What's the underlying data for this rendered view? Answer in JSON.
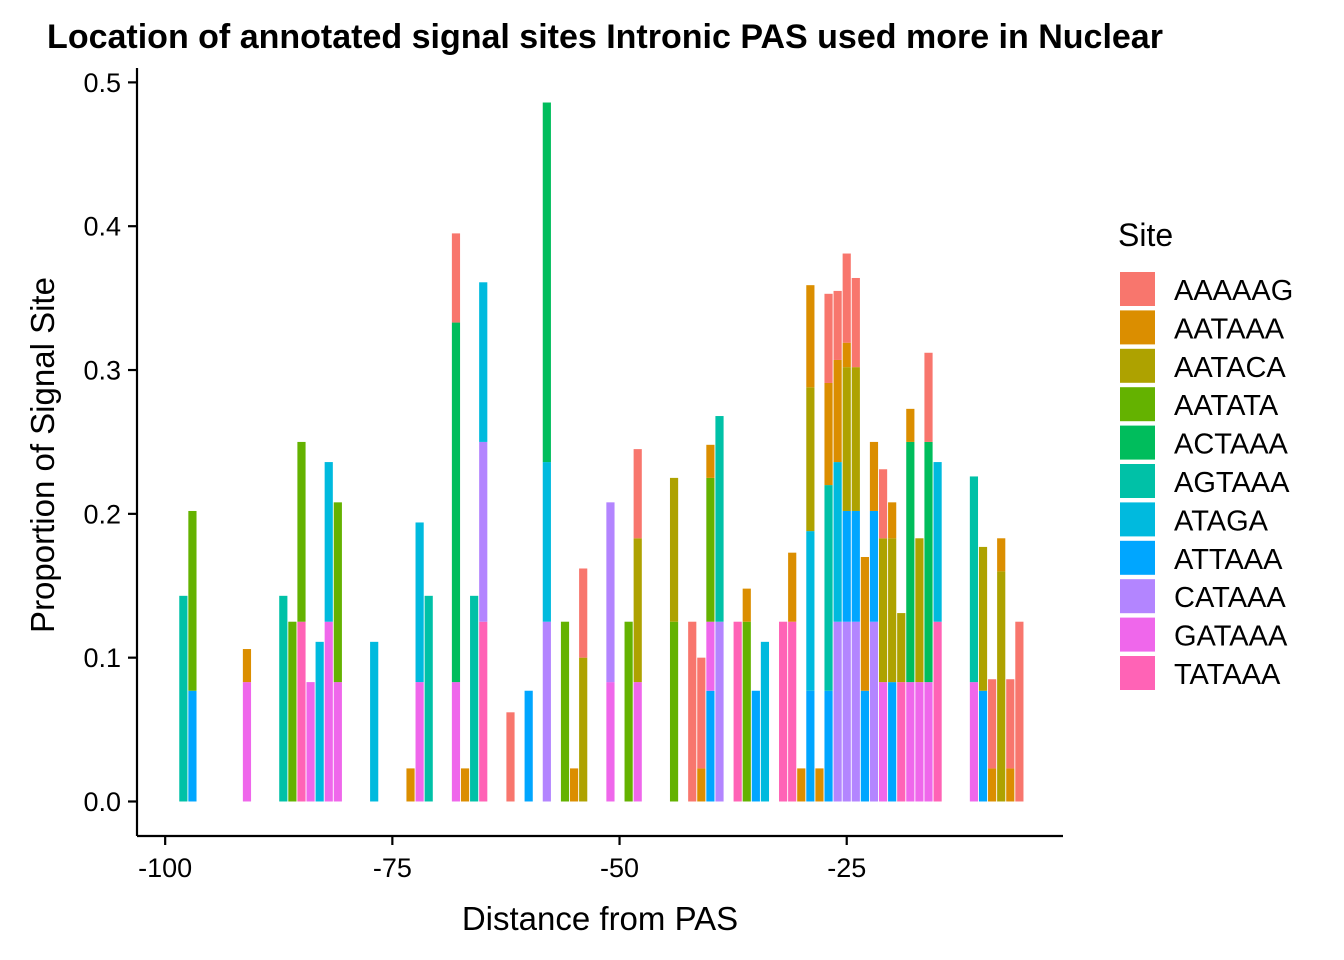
{
  "chart_data": {
    "type": "bar",
    "stacked": true,
    "title": "Location of annotated signal sites Intronic PAS used more in Nuclear",
    "xlabel": "Distance from PAS",
    "ylabel": "Proportion of Signal Site",
    "xlim": [
      -103.1,
      -1.2
    ],
    "ylim": [
      -0.024,
      0.51
    ],
    "x_ticks": [
      -100,
      -75,
      -50,
      -25
    ],
    "y_ticks": [
      0.0,
      0.1,
      0.2,
      0.3,
      0.4,
      0.5
    ],
    "x_tick_labels": [
      "-100",
      "-75",
      "-50",
      "-25"
    ],
    "y_tick_labels": [
      "0.0",
      "0.1",
      "0.2",
      "0.3",
      "0.4",
      "0.5"
    ],
    "grid": false,
    "legend": {
      "title": "Site",
      "position": "right",
      "entries": [
        "AAAAAG",
        "AATAAA",
        "AATACA",
        "AATATA",
        "ACTAAA",
        "AGTAAA",
        "ATAGA",
        "ATTAAA",
        "CATAAA",
        "GATAAA",
        "TATAAA"
      ]
    },
    "colors": {
      "AAAAAG": "#F8766D",
      "AATAAA": "#DB8E00",
      "AATACA": "#AEA200",
      "AATATA": "#64B200",
      "ACTAAA": "#00BD5C",
      "AGTAAA": "#00C1A7",
      "ATAGA": "#00BADE",
      "ATTAAA": "#00A6FF",
      "CATAAA": "#B385FF",
      "GATAAA": "#EF67EB",
      "TATAAA": "#FF63B6"
    },
    "bars": [
      {
        "x": -98,
        "segments": [
          {
            "site": "AGTAAA",
            "value": 0.143
          }
        ]
      },
      {
        "x": -97,
        "segments": [
          {
            "site": "ATTAAA",
            "value": 0.077
          },
          {
            "site": "AATATA",
            "value": 0.125
          }
        ]
      },
      {
        "x": -91,
        "segments": [
          {
            "site": "GATAAA",
            "value": 0.083
          },
          {
            "site": "AATAAA",
            "value": 0.023
          }
        ]
      },
      {
        "x": -87,
        "segments": [
          {
            "site": "AGTAAA",
            "value": 0.143
          }
        ]
      },
      {
        "x": -86,
        "segments": [
          {
            "site": "AATATA",
            "value": 0.125
          }
        ]
      },
      {
        "x": -85,
        "segments": [
          {
            "site": "TATAAA",
            "value": 0.125
          },
          {
            "site": "AATATA",
            "value": 0.125
          }
        ]
      },
      {
        "x": -84,
        "segments": [
          {
            "site": "GATAAA",
            "value": 0.083
          }
        ]
      },
      {
        "x": -83,
        "segments": [
          {
            "site": "ATAGA",
            "value": 0.111
          }
        ]
      },
      {
        "x": -82,
        "segments": [
          {
            "site": "GATAAA",
            "value": 0.125
          },
          {
            "site": "ATAGA",
            "value": 0.111
          }
        ]
      },
      {
        "x": -81,
        "segments": [
          {
            "site": "GATAAA",
            "value": 0.083
          },
          {
            "site": "AATATA",
            "value": 0.125
          }
        ]
      },
      {
        "x": -77,
        "segments": [
          {
            "site": "ATAGA",
            "value": 0.111
          }
        ]
      },
      {
        "x": -73,
        "segments": [
          {
            "site": "AATAAA",
            "value": 0.023
          }
        ]
      },
      {
        "x": -72,
        "segments": [
          {
            "site": "GATAAA",
            "value": 0.083
          },
          {
            "site": "ATAGA",
            "value": 0.111
          }
        ]
      },
      {
        "x": -71,
        "segments": [
          {
            "site": "AGTAAA",
            "value": 0.143
          }
        ]
      },
      {
        "x": -68,
        "segments": [
          {
            "site": "GATAAA",
            "value": 0.083
          },
          {
            "site": "ACTAAA",
            "value": 0.25
          },
          {
            "site": "AAAAAG",
            "value": 0.062
          }
        ]
      },
      {
        "x": -67,
        "segments": [
          {
            "site": "AATAAA",
            "value": 0.023
          }
        ]
      },
      {
        "x": -66,
        "segments": [
          {
            "site": "AGTAAA",
            "value": 0.143
          }
        ]
      },
      {
        "x": -65,
        "segments": [
          {
            "site": "TATAAA",
            "value": 0.125
          },
          {
            "site": "CATAAA",
            "value": 0.125
          },
          {
            "site": "ATAGA",
            "value": 0.111
          }
        ]
      },
      {
        "x": -62,
        "segments": [
          {
            "site": "AAAAAG",
            "value": 0.062
          }
        ]
      },
      {
        "x": -60,
        "segments": [
          {
            "site": "ATTAAA",
            "value": 0.077
          }
        ]
      },
      {
        "x": -58,
        "segments": [
          {
            "site": "CATAAA",
            "value": 0.125
          },
          {
            "site": "ATAGA",
            "value": 0.111
          },
          {
            "site": "ACTAAA",
            "value": 0.25
          }
        ]
      },
      {
        "x": -56,
        "segments": [
          {
            "site": "AATATA",
            "value": 0.125
          }
        ]
      },
      {
        "x": -55,
        "segments": [
          {
            "site": "AATAAA",
            "value": 0.023
          }
        ]
      },
      {
        "x": -54,
        "segments": [
          {
            "site": "AATACA",
            "value": 0.1
          },
          {
            "site": "AAAAAG",
            "value": 0.062
          }
        ]
      },
      {
        "x": -51,
        "segments": [
          {
            "site": "GATAAA",
            "value": 0.083
          },
          {
            "site": "CATAAA",
            "value": 0.125
          }
        ]
      },
      {
        "x": -49,
        "segments": [
          {
            "site": "AATATA",
            "value": 0.125
          }
        ]
      },
      {
        "x": -48,
        "segments": [
          {
            "site": "GATAAA",
            "value": 0.083
          },
          {
            "site": "AATACA",
            "value": 0.1
          },
          {
            "site": "AAAAAG",
            "value": 0.062
          }
        ]
      },
      {
        "x": -44,
        "segments": [
          {
            "site": "AATATA",
            "value": 0.125
          },
          {
            "site": "AATACA",
            "value": 0.1
          }
        ]
      },
      {
        "x": -42,
        "segments": [
          {
            "site": "AAAAAG",
            "value": 0.125
          }
        ]
      },
      {
        "x": -41,
        "segments": [
          {
            "site": "AATAAA",
            "value": 0.023
          },
          {
            "site": "AAAAAG",
            "value": 0.077
          }
        ]
      },
      {
        "x": -40,
        "segments": [
          {
            "site": "ATTAAA",
            "value": 0.077
          },
          {
            "site": "GATAAA",
            "value": 0.048
          },
          {
            "site": "AATATA",
            "value": 0.1
          },
          {
            "site": "AATAAA",
            "value": 0.023
          }
        ]
      },
      {
        "x": -39,
        "segments": [
          {
            "site": "CATAAA",
            "value": 0.125
          },
          {
            "site": "AGTAAA",
            "value": 0.143
          }
        ]
      },
      {
        "x": -37,
        "segments": [
          {
            "site": "TATAAA",
            "value": 0.125
          }
        ]
      },
      {
        "x": -36,
        "segments": [
          {
            "site": "AATATA",
            "value": 0.125
          },
          {
            "site": "AATAAA",
            "value": 0.023
          }
        ]
      },
      {
        "x": -35,
        "segments": [
          {
            "site": "ATTAAA",
            "value": 0.077
          }
        ]
      },
      {
        "x": -34,
        "segments": [
          {
            "site": "ATAGA",
            "value": 0.111
          }
        ]
      },
      {
        "x": -32,
        "segments": [
          {
            "site": "TATAAA",
            "value": 0.125
          }
        ]
      },
      {
        "x": -31,
        "segments": [
          {
            "site": "TATAAA",
            "value": 0.125
          },
          {
            "site": "AATAAA",
            "value": 0.048
          }
        ]
      },
      {
        "x": -30,
        "segments": [
          {
            "site": "AATAAA",
            "value": 0.023
          }
        ]
      },
      {
        "x": -29,
        "segments": [
          {
            "site": "ATTAAA",
            "value": 0.077
          },
          {
            "site": "ATAGA",
            "value": 0.111
          },
          {
            "site": "AATACA",
            "value": 0.1
          },
          {
            "site": "AATAAA",
            "value": 0.071
          }
        ]
      },
      {
        "x": -28,
        "segments": [
          {
            "site": "AATAAA",
            "value": 0.023
          }
        ]
      },
      {
        "x": -27,
        "segments": [
          {
            "site": "ATTAAA",
            "value": 0.077
          },
          {
            "site": "AGTAAA",
            "value": 0.143
          },
          {
            "site": "AATAAA",
            "value": 0.071
          },
          {
            "site": "AAAAAG",
            "value": 0.062
          }
        ]
      },
      {
        "x": -26,
        "segments": [
          {
            "site": "CATAAA",
            "value": 0.125
          },
          {
            "site": "ATAGA",
            "value": 0.111
          },
          {
            "site": "AATAAA",
            "value": 0.071
          },
          {
            "site": "AAAAAG",
            "value": 0.048
          }
        ]
      },
      {
        "x": -25,
        "segments": [
          {
            "site": "CATAAA",
            "value": 0.125
          },
          {
            "site": "ATTAAA",
            "value": 0.077
          },
          {
            "site": "AATACA",
            "value": 0.1
          },
          {
            "site": "AATAAA",
            "value": 0.017
          },
          {
            "site": "AAAAAG",
            "value": 0.062
          }
        ]
      },
      {
        "x": -24,
        "segments": [
          {
            "site": "CATAAA",
            "value": 0.125
          },
          {
            "site": "ATTAAA",
            "value": 0.077
          },
          {
            "site": "AATACA",
            "value": 0.1
          },
          {
            "site": "AAAAAG",
            "value": 0.062
          }
        ]
      },
      {
        "x": -23,
        "segments": [
          {
            "site": "ATTAAA",
            "value": 0.077
          },
          {
            "site": "AATAAA",
            "value": 0.093
          }
        ]
      },
      {
        "x": -22,
        "segments": [
          {
            "site": "CATAAA",
            "value": 0.125
          },
          {
            "site": "ATTAAA",
            "value": 0.077
          },
          {
            "site": "AATAAA",
            "value": 0.048
          }
        ]
      },
      {
        "x": -21,
        "segments": [
          {
            "site": "GATAAA",
            "value": 0.083
          },
          {
            "site": "AATACA",
            "value": 0.1
          },
          {
            "site": "AAAAAG",
            "value": 0.048
          }
        ]
      },
      {
        "x": -20,
        "segments": [
          {
            "site": "ATTAAA",
            "value": 0.083
          },
          {
            "site": "AATACA",
            "value": 0.1
          },
          {
            "site": "AATAAA",
            "value": 0.025
          }
        ]
      },
      {
        "x": -19,
        "segments": [
          {
            "site": "TATAAA",
            "value": 0.083
          },
          {
            "site": "AATACA",
            "value": 0.048
          }
        ]
      },
      {
        "x": -18,
        "segments": [
          {
            "site": "GATAAA",
            "value": 0.083
          },
          {
            "site": "ACTAAA",
            "value": 0.167
          },
          {
            "site": "AATAAA",
            "value": 0.023
          }
        ]
      },
      {
        "x": -17,
        "segments": [
          {
            "site": "GATAAA",
            "value": 0.083
          },
          {
            "site": "AATACA",
            "value": 0.1
          }
        ]
      },
      {
        "x": -16,
        "segments": [
          {
            "site": "GATAAA",
            "value": 0.083
          },
          {
            "site": "ACTAAA",
            "value": 0.167
          },
          {
            "site": "AAAAAG",
            "value": 0.062
          }
        ]
      },
      {
        "x": -15,
        "segments": [
          {
            "site": "TATAAA",
            "value": 0.125
          },
          {
            "site": "ATAGA",
            "value": 0.111
          }
        ]
      },
      {
        "x": -11,
        "segments": [
          {
            "site": "GATAAA",
            "value": 0.083
          },
          {
            "site": "AGTAAA",
            "value": 0.143
          }
        ]
      },
      {
        "x": -10,
        "segments": [
          {
            "site": "ATTAAA",
            "value": 0.077
          },
          {
            "site": "AATACA",
            "value": 0.1
          }
        ]
      },
      {
        "x": -9,
        "segments": [
          {
            "site": "AATAAA",
            "value": 0.023
          },
          {
            "site": "AAAAAG",
            "value": 0.062
          }
        ]
      },
      {
        "x": -8,
        "segments": [
          {
            "site": "AATACA",
            "value": 0.16
          },
          {
            "site": "AATAAA",
            "value": 0.023
          }
        ]
      },
      {
        "x": -7,
        "segments": [
          {
            "site": "AATAAA",
            "value": 0.023
          },
          {
            "site": "AAAAAG",
            "value": 0.062
          }
        ]
      },
      {
        "x": -6,
        "segments": [
          {
            "site": "AAAAAG",
            "value": 0.125
          }
        ]
      }
    ]
  }
}
